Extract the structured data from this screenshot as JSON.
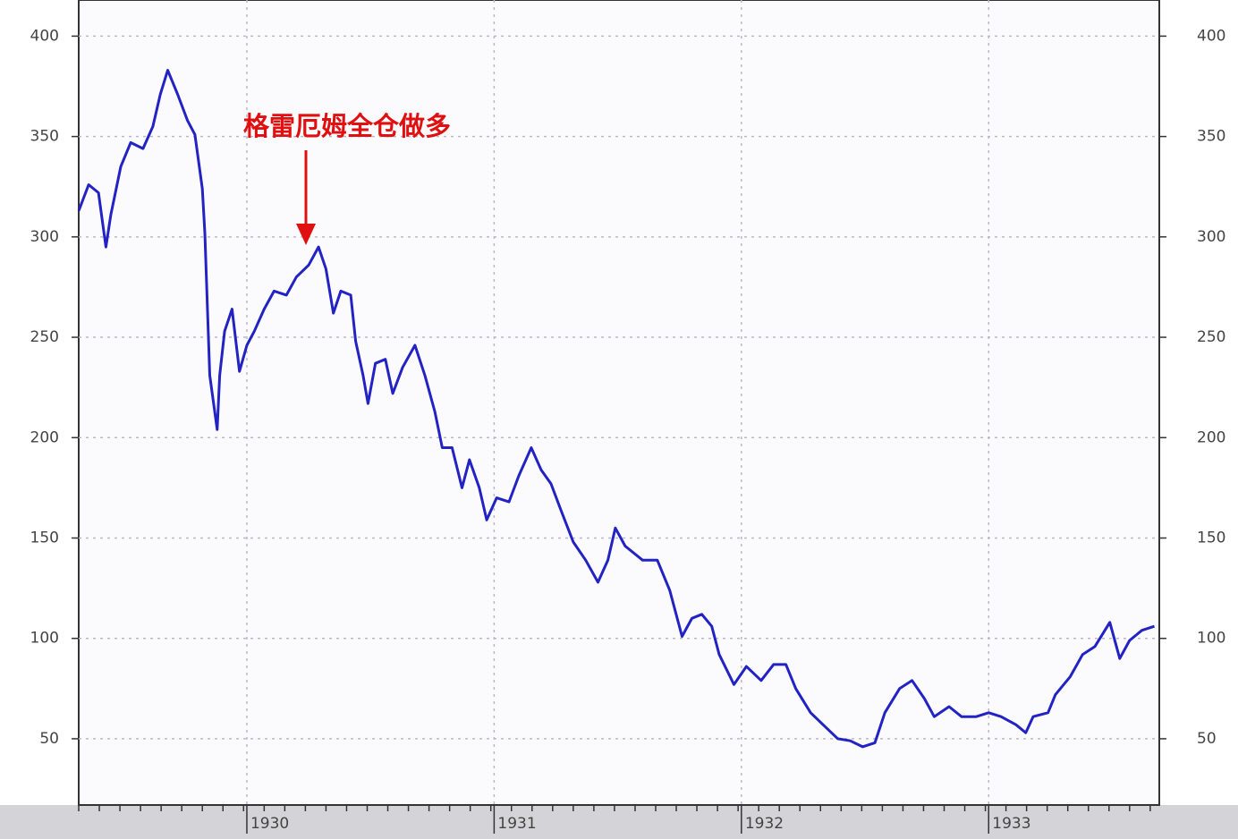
{
  "chart_data": {
    "type": "line",
    "annotation": "格雷厄姆全仓做多",
    "x": [
      1929.32,
      1929.36,
      1929.4,
      1929.43,
      1929.45,
      1929.49,
      1929.53,
      1929.58,
      1929.62,
      1929.65,
      1929.68,
      1929.72,
      1929.76,
      1929.79,
      1929.82,
      1929.83,
      1929.85,
      1929.88,
      1929.89,
      1929.91,
      1929.94,
      1929.97,
      1930.0,
      1930.03,
      1930.07,
      1930.11,
      1930.16,
      1930.2,
      1930.25,
      1930.29,
      1930.32,
      1930.35,
      1930.38,
      1930.42,
      1930.44,
      1930.47,
      1930.49,
      1930.52,
      1930.56,
      1930.59,
      1930.63,
      1930.68,
      1930.72,
      1930.76,
      1930.79,
      1930.83,
      1930.87,
      1930.9,
      1930.94,
      1930.97,
      1931.01,
      1931.06,
      1931.1,
      1931.15,
      1931.19,
      1931.23,
      1931.27,
      1931.32,
      1931.37,
      1931.42,
      1931.46,
      1931.49,
      1931.53,
      1931.6,
      1931.66,
      1931.71,
      1931.76,
      1931.8,
      1931.84,
      1931.88,
      1931.91,
      1931.97,
      1932.02,
      1932.08,
      1932.13,
      1932.18,
      1932.22,
      1932.28,
      1932.33,
      1932.39,
      1932.44,
      1932.49,
      1932.54,
      1932.58,
      1932.64,
      1932.69,
      1932.74,
      1932.78,
      1932.84,
      1932.89,
      1932.95,
      1933.0,
      1933.05,
      1933.11,
      1933.15,
      1933.18,
      1933.24,
      1933.27,
      1933.33,
      1933.38,
      1933.43,
      1933.49,
      1933.53,
      1933.57,
      1933.62,
      1933.67
    ],
    "series": [
      {
        "color": "#2323c4",
        "values": [
          313,
          326,
          322,
          295,
          311,
          335,
          347,
          344,
          355,
          371,
          383,
          371,
          358,
          351,
          324,
          302,
          231,
          204,
          231,
          253,
          264,
          233,
          246,
          253,
          264,
          273,
          271,
          280,
          286,
          295,
          284,
          262,
          273,
          271,
          248,
          231,
          217,
          237,
          239,
          222,
          235,
          246,
          231,
          213,
          195,
          195,
          175,
          189,
          175,
          159,
          170,
          168,
          181,
          195,
          184,
          177,
          164,
          148,
          139,
          128,
          139,
          155,
          146,
          139,
          139,
          124,
          101,
          110,
          112,
          106,
          92,
          77,
          86,
          79,
          87,
          87,
          75,
          63,
          57,
          50,
          49,
          46,
          48,
          63,
          75,
          79,
          70,
          61,
          66,
          61,
          61,
          63,
          61,
          57,
          53,
          61,
          63,
          72,
          81,
          92,
          96,
          108,
          90,
          99,
          104,
          106
        ]
      }
    ],
    "xlim": [
      1929.32,
      1933.69
    ],
    "ylim": [
      17,
      418
    ],
    "xticks": [
      1930,
      1931,
      1932,
      1933
    ],
    "yticks": [
      50,
      100,
      150,
      200,
      250,
      300,
      350,
      400
    ],
    "grid": true
  }
}
